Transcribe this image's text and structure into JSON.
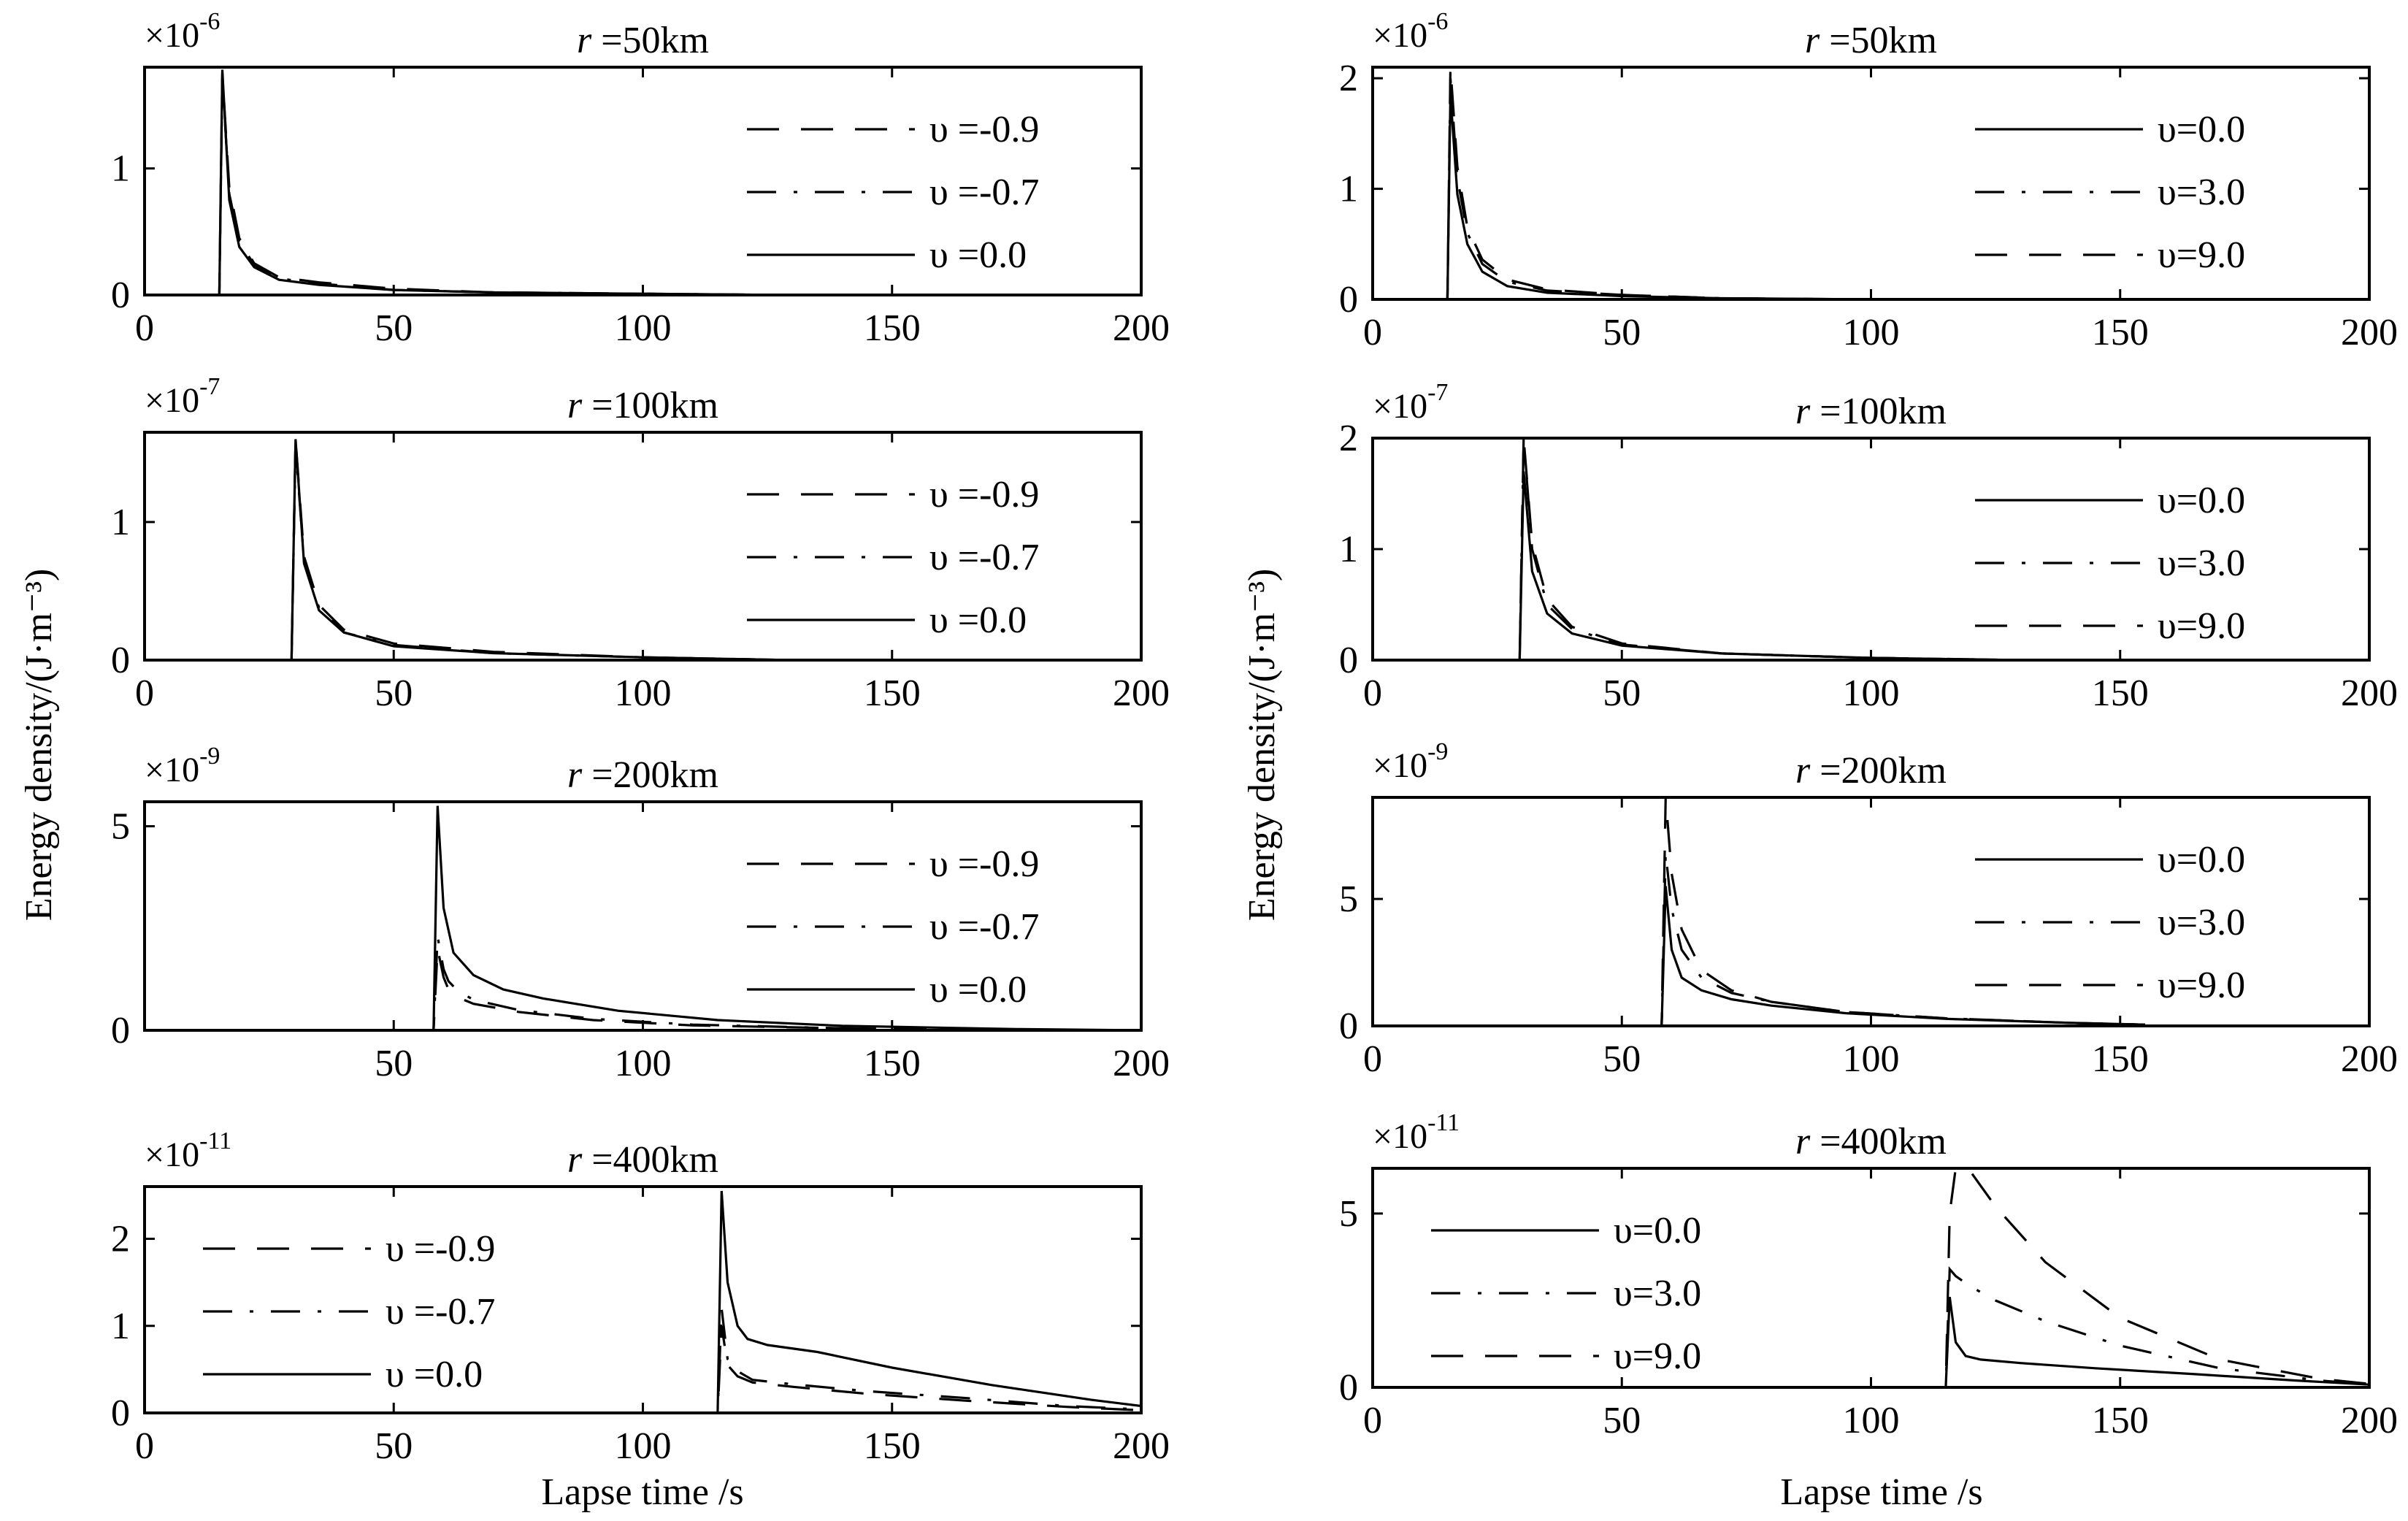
{
  "figure": {
    "ylabel": "Energy density/(J·m⁻³)",
    "xlabel": "Lapse time /s"
  },
  "chart_data": [
    {
      "id": "left-r50",
      "type": "line",
      "title_r": "r",
      "title_rest": " =50km",
      "multiplier": "×10",
      "exponent": "-6",
      "xlim": [
        0,
        200
      ],
      "ylim": [
        0,
        1.8
      ],
      "xticks": [
        "0",
        "50",
        "100",
        "150",
        "200"
      ],
      "yticks": [
        "0",
        "1"
      ],
      "ytick_values": [
        0,
        1
      ],
      "legend": "upper-right",
      "series": [
        {
          "name": "υ =-0.9",
          "dash": "dashed",
          "x": [
            0,
            15,
            15.6,
            17,
            19,
            22,
            27,
            35,
            50,
            70,
            100,
            130
          ],
          "y": [
            0,
            0,
            1.75,
            0.85,
            0.45,
            0.25,
            0.14,
            0.1,
            0.05,
            0.02,
            0.01,
            0
          ]
        },
        {
          "name": "υ =-0.7",
          "dash": "dashdot",
          "x": [
            0,
            15,
            15.6,
            17,
            19,
            22,
            27,
            35,
            50,
            70,
            100,
            130
          ],
          "y": [
            0,
            0,
            1.72,
            0.8,
            0.42,
            0.24,
            0.13,
            0.09,
            0.04,
            0.02,
            0.01,
            0
          ]
        },
        {
          "name": "υ =0.0",
          "dash": "solid",
          "x": [
            0,
            15,
            15.6,
            17,
            19,
            22,
            27,
            35,
            50,
            70,
            100,
            130
          ],
          "y": [
            0,
            0,
            1.78,
            0.75,
            0.38,
            0.22,
            0.12,
            0.08,
            0.04,
            0.02,
            0.01,
            0
          ]
        }
      ]
    },
    {
      "id": "left-r100",
      "type": "line",
      "title_r": "r",
      "title_rest": " =100km",
      "multiplier": "×10",
      "exponent": "-7",
      "xlim": [
        0,
        200
      ],
      "ylim": [
        0,
        1.65
      ],
      "xticks": [
        "0",
        "50",
        "100",
        "150",
        "200"
      ],
      "yticks": [
        "0",
        "1"
      ],
      "ytick_values": [
        0,
        1
      ],
      "legend": "upper-right",
      "series": [
        {
          "name": "υ =-0.9",
          "dash": "dashed",
          "x": [
            0,
            29.5,
            30.3,
            32,
            35,
            40,
            50,
            70,
            100,
            130
          ],
          "y": [
            0,
            0,
            1.6,
            0.75,
            0.4,
            0.22,
            0.12,
            0.06,
            0.02,
            0
          ]
        },
        {
          "name": "υ =-0.7",
          "dash": "dashdot",
          "x": [
            0,
            29.5,
            30.3,
            32,
            35,
            40,
            50,
            70,
            100,
            130
          ],
          "y": [
            0,
            0,
            1.55,
            0.72,
            0.38,
            0.2,
            0.11,
            0.05,
            0.02,
            0
          ]
        },
        {
          "name": "υ =0.0",
          "dash": "solid",
          "x": [
            0,
            29.5,
            30.3,
            32,
            35,
            40,
            50,
            70,
            100,
            130
          ],
          "y": [
            0,
            0,
            1.6,
            0.7,
            0.36,
            0.2,
            0.1,
            0.05,
            0.02,
            0
          ]
        }
      ]
    },
    {
      "id": "left-r200",
      "type": "line",
      "title_r": "r",
      "title_rest": " =200km",
      "multiplier": "×10",
      "exponent": "-9",
      "xlim": [
        0,
        200
      ],
      "ylim": [
        0,
        5.6
      ],
      "xticks": [
        "50",
        "100",
        "150",
        "200"
      ],
      "yticks": [
        "0",
        "5"
      ],
      "ytick_values": [
        0,
        5
      ],
      "legend": "upper-right",
      "series": [
        {
          "name": "υ =-0.9",
          "dash": "dashed",
          "x": [
            0,
            58,
            58.8,
            60,
            61,
            63,
            66,
            75,
            90,
            110,
            140,
            175
          ],
          "y": [
            0,
            0,
            2.0,
            1.3,
            1.0,
            0.8,
            0.65,
            0.45,
            0.25,
            0.12,
            0.05,
            0
          ]
        },
        {
          "name": "υ =-0.7",
          "dash": "dashdot",
          "x": [
            0,
            58,
            58.8,
            60,
            61,
            63,
            66,
            75,
            90,
            110,
            140,
            175
          ],
          "y": [
            0,
            0,
            2.3,
            1.5,
            1.2,
            0.95,
            0.75,
            0.5,
            0.28,
            0.14,
            0.05,
            0
          ]
        },
        {
          "name": "υ =0.0",
          "dash": "solid",
          "x": [
            0,
            58,
            58.8,
            60,
            62,
            66,
            72,
            80,
            95,
            115,
            140,
            175,
            200
          ],
          "y": [
            0,
            0,
            5.5,
            3.0,
            1.9,
            1.35,
            1.0,
            0.78,
            0.48,
            0.25,
            0.11,
            0.03,
            0
          ]
        }
      ]
    },
    {
      "id": "left-r400",
      "type": "line",
      "title_r": "r",
      "title_rest": " =400km",
      "multiplier": "×10",
      "exponent": "-11",
      "xlim": [
        0,
        200
      ],
      "ylim": [
        0,
        2.6
      ],
      "xticks": [
        "0",
        "50",
        "100",
        "150",
        "200"
      ],
      "yticks": [
        "0",
        "1",
        "2"
      ],
      "ytick_values": [
        0,
        1,
        2
      ],
      "legend": "upper-left",
      "series": [
        {
          "name": "υ =-0.9",
          "dash": "dashed",
          "x": [
            0,
            115,
            115.8,
            117,
            119,
            122,
            130,
            145,
            165,
            185,
            200
          ],
          "y": [
            0,
            0,
            1.0,
            0.55,
            0.42,
            0.35,
            0.3,
            0.22,
            0.14,
            0.07,
            0.03
          ]
        },
        {
          "name": "υ =-0.7",
          "dash": "dashdot",
          "x": [
            0,
            115,
            115.8,
            117,
            119,
            122,
            130,
            145,
            165,
            185,
            200
          ],
          "y": [
            0,
            0,
            1.2,
            0.62,
            0.48,
            0.38,
            0.33,
            0.25,
            0.17,
            0.08,
            0.04
          ]
        },
        {
          "name": "υ =0.0",
          "dash": "solid",
          "x": [
            0,
            115,
            115.8,
            117,
            119,
            121,
            125,
            135,
            150,
            170,
            190,
            200
          ],
          "y": [
            0,
            0,
            2.55,
            1.5,
            1.0,
            0.85,
            0.78,
            0.7,
            0.52,
            0.32,
            0.15,
            0.08
          ]
        }
      ]
    },
    {
      "id": "right-r50",
      "type": "line",
      "title_r": "r",
      "title_rest": " =50km",
      "multiplier": "×10",
      "exponent": "-6",
      "xlim": [
        0,
        200
      ],
      "ylim": [
        0,
        2.1
      ],
      "xticks": [
        "0",
        "50",
        "100",
        "150",
        "200"
      ],
      "yticks": [
        "0",
        "1",
        "2"
      ],
      "ytick_values": [
        0,
        1,
        2
      ],
      "legend": "upper-right",
      "series": [
        {
          "name": "υ=0.0",
          "dash": "solid",
          "x": [
            0,
            15,
            15.6,
            17,
            19,
            22,
            27,
            35,
            50,
            70,
            100
          ],
          "y": [
            0,
            0,
            1.85,
            0.95,
            0.5,
            0.25,
            0.12,
            0.06,
            0.03,
            0.01,
            0
          ]
        },
        {
          "name": "υ=3.0",
          "dash": "dashdot",
          "x": [
            0,
            15,
            15.6,
            17,
            19,
            22,
            27,
            35,
            50,
            70,
            100
          ],
          "y": [
            0,
            0,
            2.0,
            1.1,
            0.6,
            0.32,
            0.16,
            0.08,
            0.04,
            0.01,
            0
          ]
        },
        {
          "name": "υ=9.0",
          "dash": "dashed",
          "x": [
            0,
            15,
            15.6,
            17,
            19,
            22,
            27,
            35,
            50,
            70,
            100
          ],
          "y": [
            0,
            0,
            2.1,
            1.2,
            0.65,
            0.36,
            0.18,
            0.09,
            0.04,
            0.01,
            0
          ]
        }
      ]
    },
    {
      "id": "right-r100",
      "type": "line",
      "title_r": "r",
      "title_rest": " =100km",
      "multiplier": "×10",
      "exponent": "-7",
      "xlim": [
        0,
        200
      ],
      "ylim": [
        0,
        2.0
      ],
      "xticks": [
        "0",
        "50",
        "100",
        "150",
        "200"
      ],
      "yticks": [
        "0",
        "1",
        "2"
      ],
      "ytick_values": [
        0,
        1,
        2
      ],
      "legend": "upper-right",
      "series": [
        {
          "name": "υ=0.0",
          "dash": "solid",
          "x": [
            0,
            29.5,
            30.3,
            32,
            35,
            40,
            50,
            70,
            100,
            130
          ],
          "y": [
            0,
            0,
            1.7,
            0.8,
            0.42,
            0.24,
            0.13,
            0.06,
            0.02,
            0
          ]
        },
        {
          "name": "υ=3.0",
          "dash": "dashdot",
          "x": [
            0,
            29.5,
            30.3,
            32,
            35,
            40,
            50,
            70,
            100,
            130
          ],
          "y": [
            0,
            0,
            2.0,
            1.0,
            0.5,
            0.28,
            0.14,
            0.06,
            0.02,
            0
          ]
        },
        {
          "name": "υ=9.0",
          "dash": "dashed",
          "x": [
            0,
            29.5,
            30.3,
            32,
            35,
            40,
            50,
            70,
            100,
            130
          ],
          "y": [
            0,
            0,
            2.0,
            1.05,
            0.55,
            0.3,
            0.15,
            0.06,
            0.02,
            0
          ]
        }
      ]
    },
    {
      "id": "right-r200",
      "type": "line",
      "title_r": "r",
      "title_rest": " =200km",
      "multiplier": "×10",
      "exponent": "-9",
      "xlim": [
        0,
        200
      ],
      "ylim": [
        0,
        9
      ],
      "xticks": [
        "0",
        "50",
        "100",
        "150",
        "200"
      ],
      "yticks": [
        "0",
        "5"
      ],
      "ytick_values": [
        0,
        5
      ],
      "legend": "upper-right",
      "series": [
        {
          "name": "υ=0.0",
          "dash": "solid",
          "x": [
            0,
            58,
            58.8,
            60,
            62,
            66,
            72,
            80,
            95,
            115,
            140,
            155
          ],
          "y": [
            0,
            0,
            5.5,
            3.0,
            1.9,
            1.4,
            1.05,
            0.8,
            0.5,
            0.28,
            0.12,
            0.05
          ]
        },
        {
          "name": "υ=3.0",
          "dash": "dashdot",
          "x": [
            0,
            58,
            58.8,
            60,
            62,
            66,
            72,
            80,
            95,
            115,
            140,
            155
          ],
          "y": [
            0,
            0,
            6.8,
            4.6,
            3.0,
            1.9,
            1.3,
            0.95,
            0.55,
            0.3,
            0.12,
            0.05
          ]
        },
        {
          "name": "υ=9.0",
          "dash": "dashed",
          "x": [
            0,
            58,
            58.8,
            60,
            62,
            66,
            72,
            80,
            95,
            115,
            140,
            155
          ],
          "y": [
            0,
            0,
            9.0,
            6.0,
            3.8,
            2.2,
            1.4,
            0.95,
            0.55,
            0.3,
            0.12,
            0.05
          ]
        }
      ]
    },
    {
      "id": "right-r400",
      "type": "line",
      "title_r": "r",
      "title_rest": " =400km",
      "multiplier": "×10",
      "exponent": "-11",
      "xlim": [
        0,
        200
      ],
      "ylim": [
        0,
        6.3
      ],
      "xticks": [
        "0",
        "50",
        "100",
        "150",
        "200"
      ],
      "yticks": [
        "0",
        "5"
      ],
      "ytick_values": [
        0,
        5
      ],
      "legend": "upper-left",
      "series": [
        {
          "name": "υ=0.0",
          "dash": "solid",
          "x": [
            0,
            115,
            115.8,
            117,
            119,
            122,
            130,
            145,
            165,
            185,
            200
          ],
          "y": [
            0,
            0,
            2.6,
            1.3,
            0.9,
            0.8,
            0.7,
            0.55,
            0.38,
            0.2,
            0.08
          ]
        },
        {
          "name": "υ=3.0",
          "dash": "dashdot",
          "x": [
            0,
            115,
            115.8,
            117,
            120,
            125,
            135,
            150,
            170,
            190,
            200
          ],
          "y": [
            0,
            0,
            3.4,
            3.2,
            2.9,
            2.5,
            1.9,
            1.2,
            0.55,
            0.2,
            0.08
          ]
        },
        {
          "name": "υ=9.0",
          "dash": "dashed",
          "x": [
            0,
            115,
            115.8,
            117,
            120,
            125,
            135,
            150,
            170,
            190,
            200
          ],
          "y": [
            0,
            0,
            5.0,
            6.3,
            6.2,
            5.2,
            3.6,
            2.0,
            0.8,
            0.25,
            0.1
          ]
        }
      ]
    }
  ]
}
